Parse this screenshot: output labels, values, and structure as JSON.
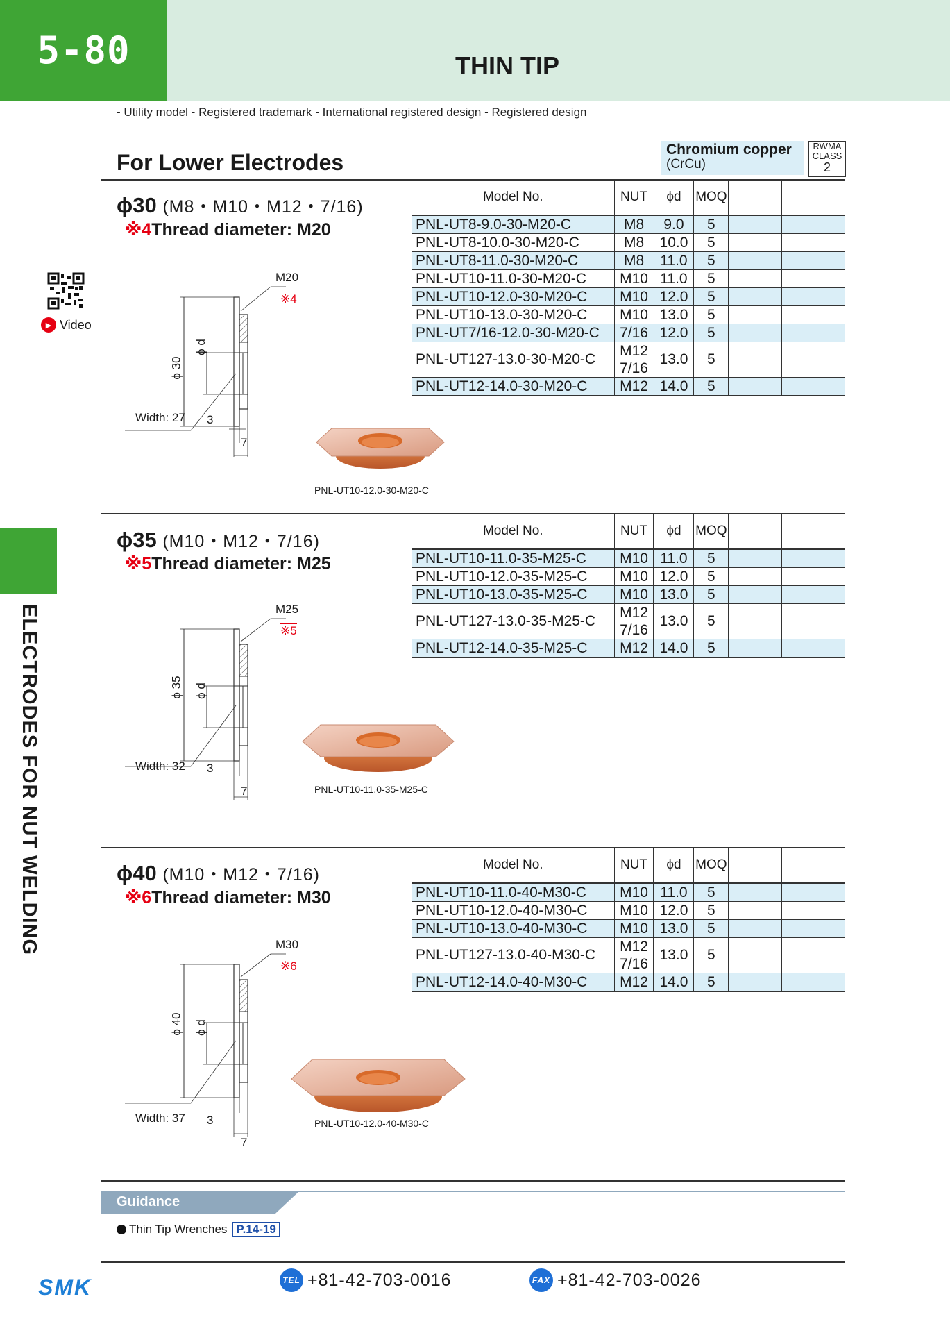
{
  "header": {
    "page_number": "5-80",
    "title": "THIN TIP",
    "legal_notes": "- Utility model  - Registered trademark  - International registered design  - Registered design"
  },
  "category": "For Lower Electrodes",
  "material": {
    "name": "Chromium copper",
    "sub": "(CrCu)",
    "rwma_line1": "RWMA",
    "rwma_line2": "CLASS",
    "rwma_class": "2"
  },
  "side": {
    "video_label": "Video",
    "vertical_label": "ELECTRODES FOR NUT WELDING"
  },
  "table_headers": {
    "model": "Model No.",
    "nut": "NUT",
    "d": "ϕd",
    "moq": "MOQ"
  },
  "sections": [
    {
      "phi": "ϕ30",
      "sizes": "(M8・M10・M12・7/16)",
      "mark": "※4",
      "thread": "Thread diameter: M20",
      "drawing": {
        "thread_label": "M20",
        "mark_label": "※4",
        "dia_label": "ϕ 30",
        "d_label": "ϕ d",
        "width_label": "Width: 27",
        "dim3": "3",
        "dim7": "7"
      },
      "photo_caption": "PNL-UT10-12.0-30-M20-C",
      "rows": [
        {
          "model": "PNL-UT8-9.0-30-M20-C",
          "nut": "M8",
          "d": "9.0",
          "moq": "5",
          "hl": true
        },
        {
          "model": "PNL-UT8-10.0-30-M20-C",
          "nut": "M8",
          "d": "10.0",
          "moq": "5",
          "hl": false
        },
        {
          "model": "PNL-UT8-11.0-30-M20-C",
          "nut": "M8",
          "d": "11.0",
          "moq": "5",
          "hl": true
        },
        {
          "model": "PNL-UT10-11.0-30-M20-C",
          "nut": "M10",
          "d": "11.0",
          "moq": "5",
          "hl": false
        },
        {
          "model": "PNL-UT10-12.0-30-M20-C",
          "nut": "M10",
          "d": "12.0",
          "moq": "5",
          "hl": true
        },
        {
          "model": "PNL-UT10-13.0-30-M20-C",
          "nut": "M10",
          "d": "13.0",
          "moq": "5",
          "hl": false
        },
        {
          "model": "PNL-UT7/16-12.0-30-M20-C",
          "nut": "7/16",
          "d": "12.0",
          "moq": "5",
          "hl": true
        },
        {
          "model": "PNL-UT127-13.0-30-M20-C",
          "nut": "M12",
          "nut2": "7/16",
          "d": "13.0",
          "moq": "5",
          "hl": false
        },
        {
          "model": "PNL-UT12-14.0-30-M20-C",
          "nut": "M12",
          "d": "14.0",
          "moq": "5",
          "hl": true
        }
      ]
    },
    {
      "phi": "ϕ35",
      "sizes": "(M10・M12・7/16)",
      "mark": "※5",
      "thread": "Thread diameter: M25",
      "drawing": {
        "thread_label": "M25",
        "mark_label": "※5",
        "dia_label": "ϕ 35",
        "d_label": "ϕ d",
        "width_label": "Width: 32",
        "dim3": "3",
        "dim7": "7"
      },
      "photo_caption": "PNL-UT10-11.0-35-M25-C",
      "rows": [
        {
          "model": "PNL-UT10-11.0-35-M25-C",
          "nut": "M10",
          "d": "11.0",
          "moq": "5",
          "hl": true
        },
        {
          "model": "PNL-UT10-12.0-35-M25-C",
          "nut": "M10",
          "d": "12.0",
          "moq": "5",
          "hl": false
        },
        {
          "model": "PNL-UT10-13.0-35-M25-C",
          "nut": "M10",
          "d": "13.0",
          "moq": "5",
          "hl": true
        },
        {
          "model": "PNL-UT127-13.0-35-M25-C",
          "nut": "M12",
          "nut2": "7/16",
          "d": "13.0",
          "moq": "5",
          "hl": false
        },
        {
          "model": "PNL-UT12-14.0-35-M25-C",
          "nut": "M12",
          "d": "14.0",
          "moq": "5",
          "hl": true
        }
      ]
    },
    {
      "phi": "ϕ40",
      "sizes": "(M10・M12・7/16)",
      "mark": "※6",
      "thread": "Thread diameter: M30",
      "drawing": {
        "thread_label": "M30",
        "mark_label": "※6",
        "dia_label": "ϕ 40",
        "d_label": "ϕ d",
        "width_label": "Width: 37",
        "dim3": "3",
        "dim7": "7"
      },
      "photo_caption": "PNL-UT10-12.0-40-M30-C",
      "rows": [
        {
          "model": "PNL-UT10-11.0-40-M30-C",
          "nut": "M10",
          "d": "11.0",
          "moq": "5",
          "hl": true
        },
        {
          "model": "PNL-UT10-12.0-40-M30-C",
          "nut": "M10",
          "d": "12.0",
          "moq": "5",
          "hl": false
        },
        {
          "model": "PNL-UT10-13.0-40-M30-C",
          "nut": "M10",
          "d": "13.0",
          "moq": "5",
          "hl": true
        },
        {
          "model": "PNL-UT127-13.0-40-M30-C",
          "nut": "M12",
          "nut2": "7/16",
          "d": "13.0",
          "moq": "5",
          "hl": false
        },
        {
          "model": "PNL-UT12-14.0-40-M30-C",
          "nut": "M12",
          "d": "14.0",
          "moq": "5",
          "hl": true
        }
      ]
    }
  ],
  "guidance": {
    "title": "Guidance",
    "item": "Thin Tip Wrenches",
    "ref": "P.14-19"
  },
  "footer": {
    "logo": "SMK",
    "tel_badge": "TEL",
    "tel": "+81-42-703-0016",
    "fax_badge": "FAX",
    "fax": "+81-42-703-0026"
  }
}
